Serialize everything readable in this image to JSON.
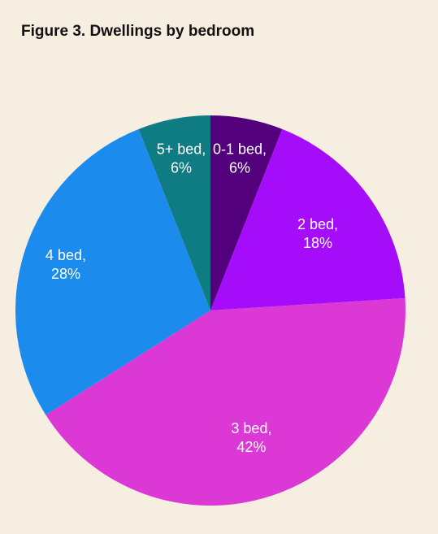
{
  "chart_data": {
    "type": "pie",
    "title": "Figure 3. Dwellings by bedroom",
    "slices": [
      {
        "label": "0-1 bed,",
        "percent_label": "6%",
        "value": 6,
        "color": "#53007d"
      },
      {
        "label": "2 bed,",
        "percent_label": "18%",
        "value": 18,
        "color": "#a50cfa"
      },
      {
        "label": "3 bed,",
        "percent_label": "42%",
        "value": 42,
        "color": "#dc38d6"
      },
      {
        "label": "4 bed,",
        "percent_label": "28%",
        "value": 28,
        "color": "#1b8ced"
      },
      {
        "label": "5+ bed,",
        "percent_label": "6%",
        "value": 6,
        "color": "#0f7b83"
      }
    ],
    "start_angle": "12 o'clock",
    "direction": "clockwise",
    "legend": "none"
  }
}
